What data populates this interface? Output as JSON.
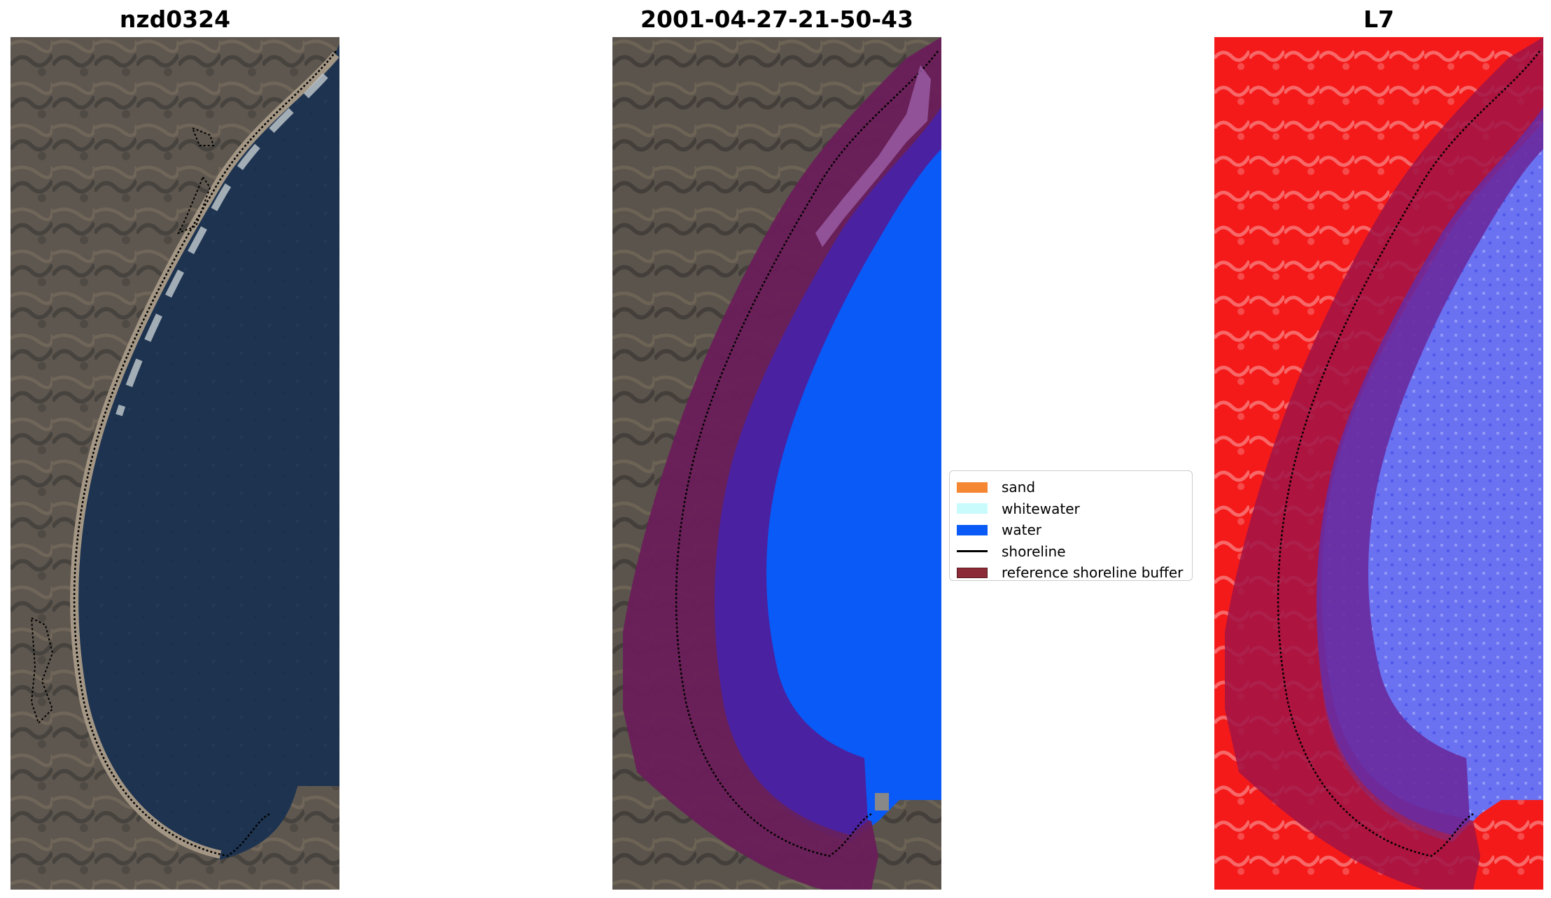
{
  "panels": [
    {
      "title": "nzd0324",
      "view": "true-color satellite image"
    },
    {
      "title": "2001-04-27-21-50-43",
      "view": "classified image"
    },
    {
      "title": "L7",
      "view": "water index image"
    }
  ],
  "legend": {
    "items": [
      {
        "label": "sand",
        "color": "#f58733",
        "kind": "patch"
      },
      {
        "label": "whitewater",
        "color": "#c9fbfd",
        "kind": "patch"
      },
      {
        "label": "water",
        "color": "#0a5af7",
        "kind": "patch"
      },
      {
        "label": "shoreline",
        "color": "#000000",
        "kind": "line"
      },
      {
        "label": "reference shoreline buffer",
        "color": "#8c2a37",
        "kind": "patch"
      }
    ]
  },
  "colors": {
    "land": "#5e574f",
    "sea": "#1d3350",
    "water_class": "#0a5af7",
    "buffer": "#6a1e58",
    "buffer_over_water": "#4a21a0",
    "index_land": "#f51a1a",
    "index_water": "#6a72f2"
  }
}
